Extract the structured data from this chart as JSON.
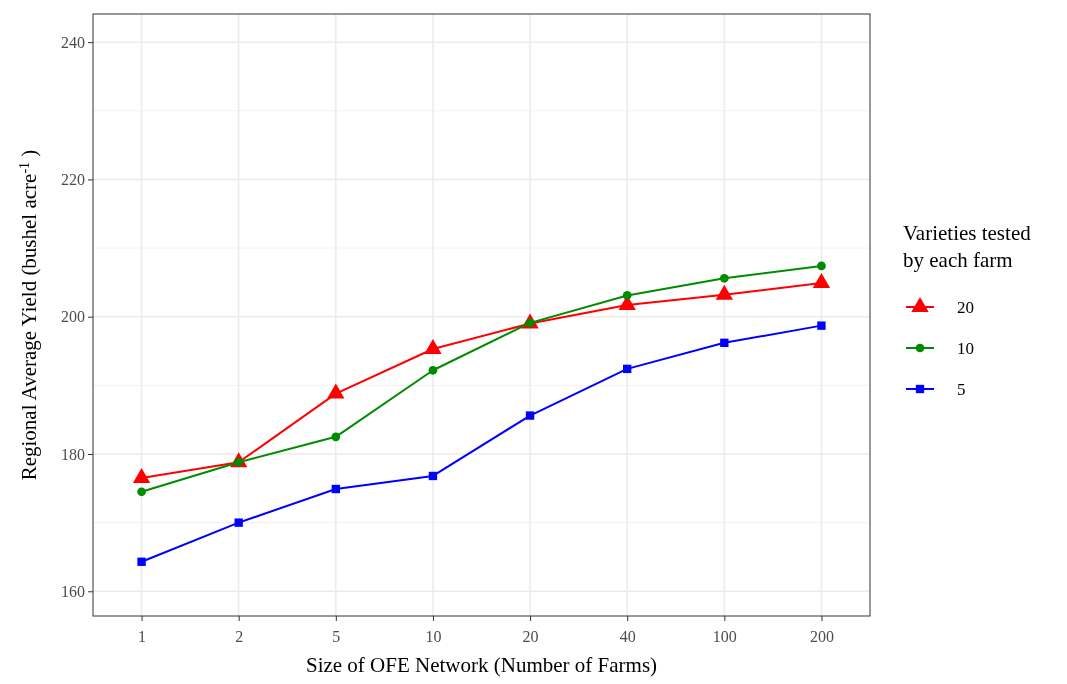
{
  "chart_data": {
    "type": "line",
    "xlabel": "Size of OFE Network (Number of Farms)",
    "ylabel": "Regional Average Yield (bushel  acre$^{-1}$ )",
    "legend_title": "Varieties tested\nby each farm",
    "categories": [
      "1",
      "2",
      "5",
      "10",
      "20",
      "40",
      "100",
      "200"
    ],
    "ylim": [
      156.4,
      244.1
    ],
    "yticks": [
      160,
      180,
      200,
      220,
      240
    ],
    "grid": true,
    "legend": "right",
    "series": [
      {
        "name": "20",
        "color": "#ff0000",
        "marker": "triangle",
        "values": [
          176.5,
          178.8,
          188.8,
          195.3,
          199.0,
          201.7,
          203.2,
          204.9
        ]
      },
      {
        "name": "10",
        "color": "#008b00",
        "marker": "circle",
        "values": [
          174.5,
          178.8,
          182.5,
          192.2,
          199.1,
          203.1,
          205.6,
          207.4
        ]
      },
      {
        "name": "5",
        "color": "#0000ff",
        "marker": "square",
        "values": [
          164.3,
          170.0,
          174.9,
          176.8,
          185.6,
          192.4,
          196.2,
          198.7
        ]
      }
    ]
  }
}
